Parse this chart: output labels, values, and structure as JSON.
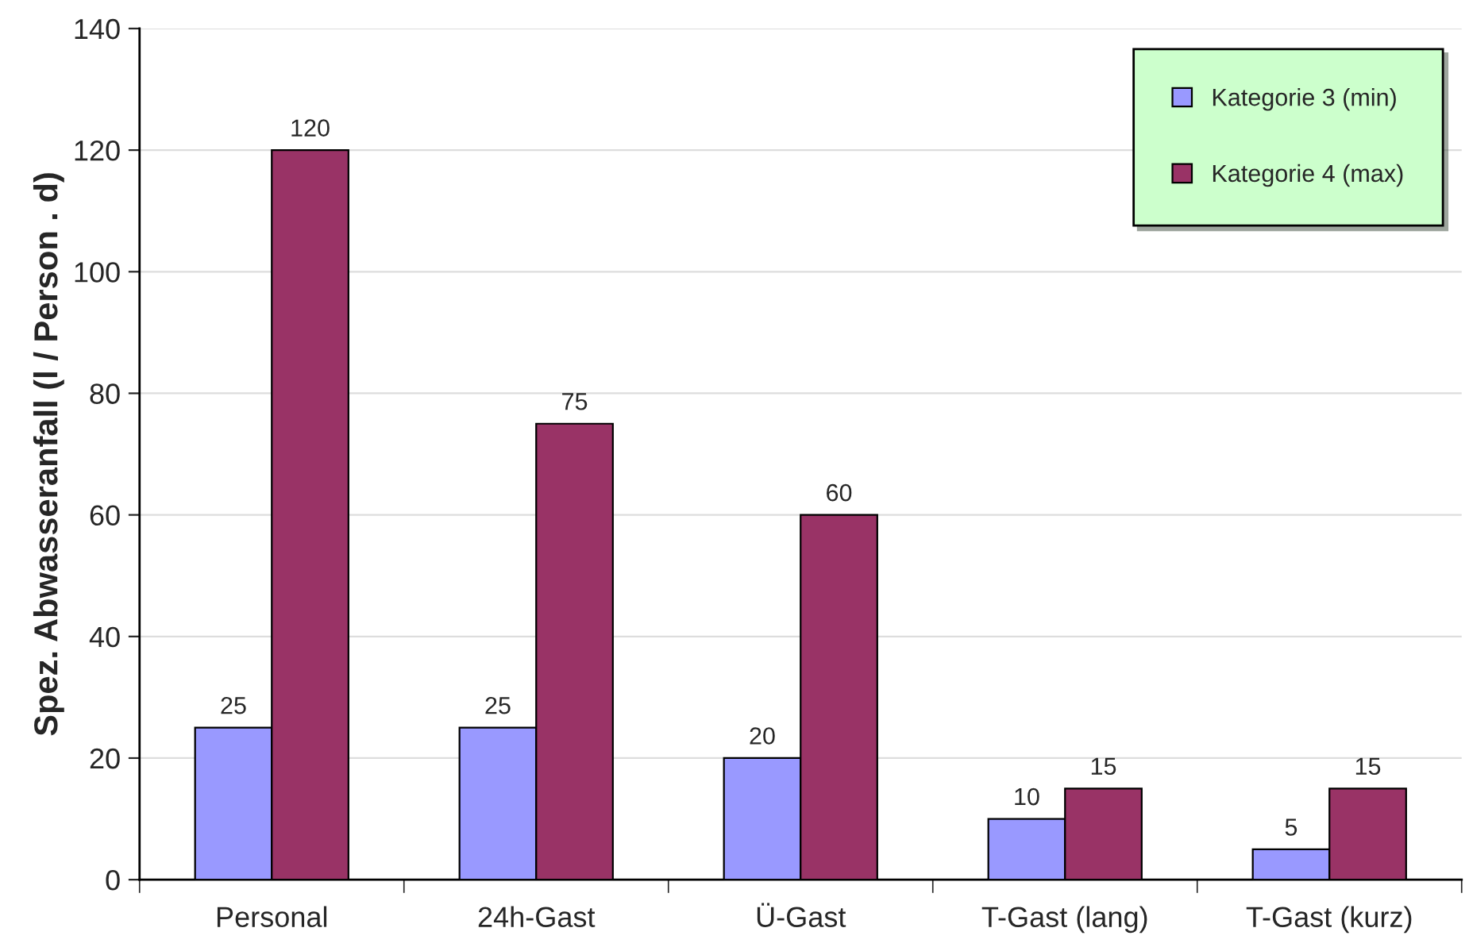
{
  "chart_data": {
    "type": "bar",
    "ylabel": "Spez. Abwasseranfall (l / Person . d)",
    "categories": [
      "Personal",
      "24h-Gast",
      "Ü-Gast",
      "T-Gast (lang)",
      "T-Gast (kurz)"
    ],
    "series": [
      {
        "name": "Kategorie 3 (min)",
        "color": "#9999ff",
        "values": [
          25,
          25,
          20,
          10,
          5
        ]
      },
      {
        "name": "Kategorie 4 (max)",
        "color": "#993366",
        "values": [
          120,
          75,
          60,
          15,
          15
        ]
      }
    ],
    "ylim": [
      0,
      140
    ],
    "yticks": [
      0,
      20,
      40,
      60,
      80,
      100,
      120,
      140
    ],
    "grid": "y",
    "legend": "top right",
    "data_labels": true
  }
}
